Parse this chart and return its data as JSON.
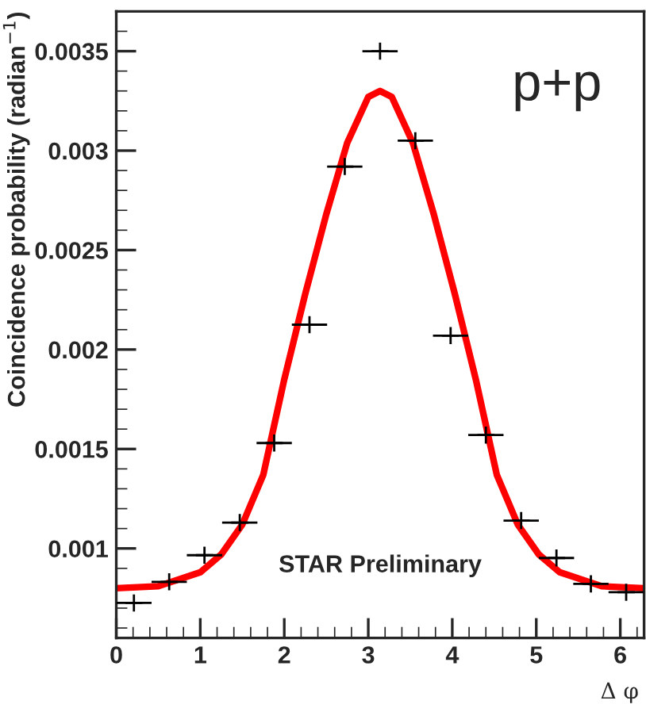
{
  "chart_data": {
    "type": "scatter",
    "xlabel": "Δ φ",
    "ylabel": "Coincidence probability (radian$^{−1}$)",
    "annotations": [
      "p+p",
      "STAR Preliminary"
    ],
    "xlim": [
      0,
      6.283
    ],
    "ylim": [
      0.00055,
      0.0037
    ],
    "xticks": [
      0,
      1,
      2,
      3,
      4,
      5,
      6
    ],
    "yticks": [
      0.001,
      0.0015,
      0.002,
      0.0025,
      0.003,
      0.0035
    ],
    "grid": false,
    "legend": false,
    "series": [
      {
        "color": "#000000",
        "marker": "cross",
        "x": [
          0.21,
          0.63,
          1.05,
          1.47,
          1.88,
          2.3,
          2.72,
          3.14,
          3.56,
          3.98,
          4.4,
          4.82,
          5.24,
          5.65,
          6.07
        ],
        "values": [
          0.000726,
          0.000832,
          0.000966,
          0.00113,
          0.00153,
          0.002125,
          0.00292,
          0.0035,
          0.00305,
          0.00207,
          0.00157,
          0.00114,
          0.000952,
          0.000822,
          0.00078
        ],
        "xerrors": [
          0.21,
          0.21,
          0.21,
          0.21,
          0.21,
          0.21,
          0.21,
          0.21,
          0.21,
          0.21,
          0.21,
          0.21,
          0.21,
          0.21,
          0.21
        ]
      },
      {
        "type": "line",
        "color": "#ff0000",
        "x": [
          0,
          0.5,
          1.0,
          1.25,
          1.5,
          1.75,
          2.0,
          2.25,
          2.5,
          2.75,
          3.0,
          3.14,
          3.28,
          3.53,
          3.78,
          4.03,
          4.28,
          4.53,
          4.78,
          5.03,
          5.28,
          5.78,
          6.28
        ],
        "values": [
          0.0008,
          0.00081,
          0.00088,
          0.00097,
          0.00112,
          0.00137,
          0.00185,
          0.00228,
          0.00268,
          0.00304,
          0.00327,
          0.0033,
          0.00327,
          0.00304,
          0.00268,
          0.00228,
          0.00185,
          0.00137,
          0.00112,
          0.00097,
          0.00088,
          0.00081,
          0.0008
        ]
      }
    ]
  }
}
